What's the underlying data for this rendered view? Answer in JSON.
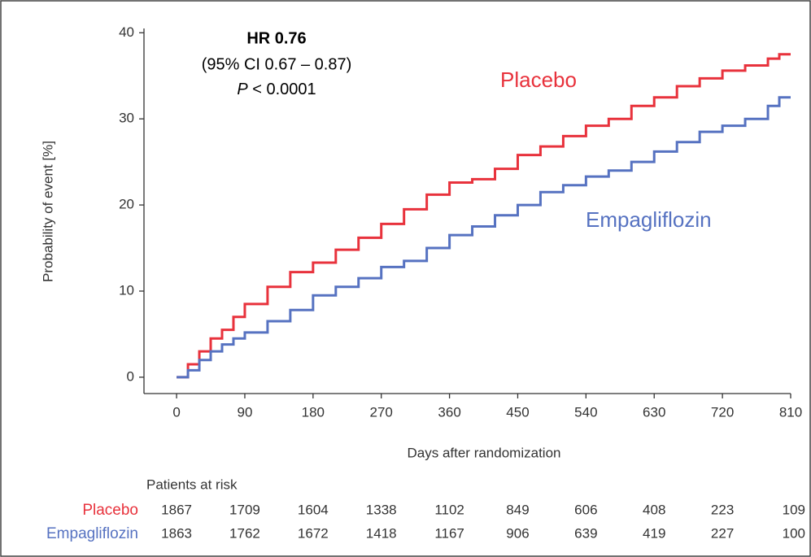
{
  "chart_data": {
    "type": "step",
    "annotation": {
      "hr": "HR 0.76",
      "ci": "(95% CI 0.67 – 0.87)",
      "p_label": "P",
      "p_value": "< 0.0001"
    },
    "x_label": "Days after randomization",
    "y_label": "Probability of event [%]",
    "x": [
      0,
      15,
      30,
      45,
      60,
      75,
      90,
      120,
      150,
      180,
      210,
      240,
      270,
      300,
      330,
      360,
      390,
      420,
      450,
      480,
      510,
      540,
      570,
      600,
      630,
      660,
      690,
      720,
      750,
      780,
      795,
      810
    ],
    "series": [
      {
        "name": "Placebo",
        "color": "#e8323c",
        "values": [
          0,
          1.5,
          3,
          4.5,
          5.5,
          7,
          8.5,
          10.5,
          12.2,
          13.3,
          14.8,
          16.2,
          17.8,
          19.5,
          21.2,
          22.6,
          23.0,
          24.2,
          25.8,
          26.8,
          28.0,
          29.2,
          30.0,
          31.5,
          32.5,
          33.8,
          34.7,
          35.6,
          36.2,
          37.0,
          37.5,
          37.5
        ]
      },
      {
        "name": "Empagliflozin",
        "color": "#5672c1",
        "values": [
          0,
          0.8,
          2,
          3,
          3.8,
          4.5,
          5.2,
          6.5,
          7.8,
          9.5,
          10.5,
          11.5,
          12.8,
          13.5,
          15.0,
          16.5,
          17.5,
          18.8,
          20.0,
          21.5,
          22.3,
          23.3,
          24.0,
          25.0,
          26.2,
          27.3,
          28.5,
          29.2,
          30.0,
          31.5,
          32.5,
          32.5
        ]
      }
    ],
    "xlim": [
      -43,
      810
    ],
    "ylim": [
      -1.9,
      40.5
    ],
    "xticks": [
      0,
      90,
      180,
      270,
      360,
      450,
      540,
      630,
      720,
      810
    ],
    "yticks": [
      0,
      10,
      20,
      30,
      40
    ],
    "risk_table": {
      "title": "Patients at risk",
      "counts": [
        [
          1867,
          1709,
          1604,
          1338,
          1102,
          849,
          606,
          408,
          223,
          109
        ],
        [
          1863,
          1762,
          1672,
          1418,
          1167,
          906,
          639,
          419,
          227,
          100
        ]
      ]
    }
  }
}
